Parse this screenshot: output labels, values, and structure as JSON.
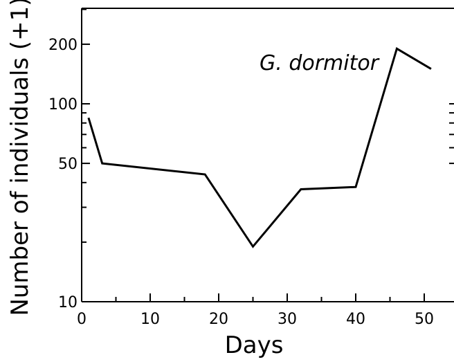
{
  "chart_data": {
    "type": "line",
    "xlabel": "Days",
    "ylabel": "Number of individuals (+1)",
    "annotation": "G. dormitor",
    "xlim": [
      0,
      54
    ],
    "ylim": [
      10,
      300
    ],
    "yscale": "log",
    "grid": false,
    "x_ticks": [
      0,
      10,
      20,
      30,
      40,
      50
    ],
    "y_ticks": [
      10,
      50,
      100,
      200
    ],
    "x_tick_labels": [
      "0",
      "10",
      "20",
      "30",
      "40",
      "50"
    ],
    "y_tick_labels": [
      "10",
      "50",
      "100",
      "200"
    ],
    "series": [
      {
        "x": [
          1,
          3,
          18,
          25,
          32,
          40,
          46,
          51
        ],
        "values": [
          85,
          50,
          44,
          19,
          37,
          38,
          190,
          150
        ]
      }
    ]
  }
}
